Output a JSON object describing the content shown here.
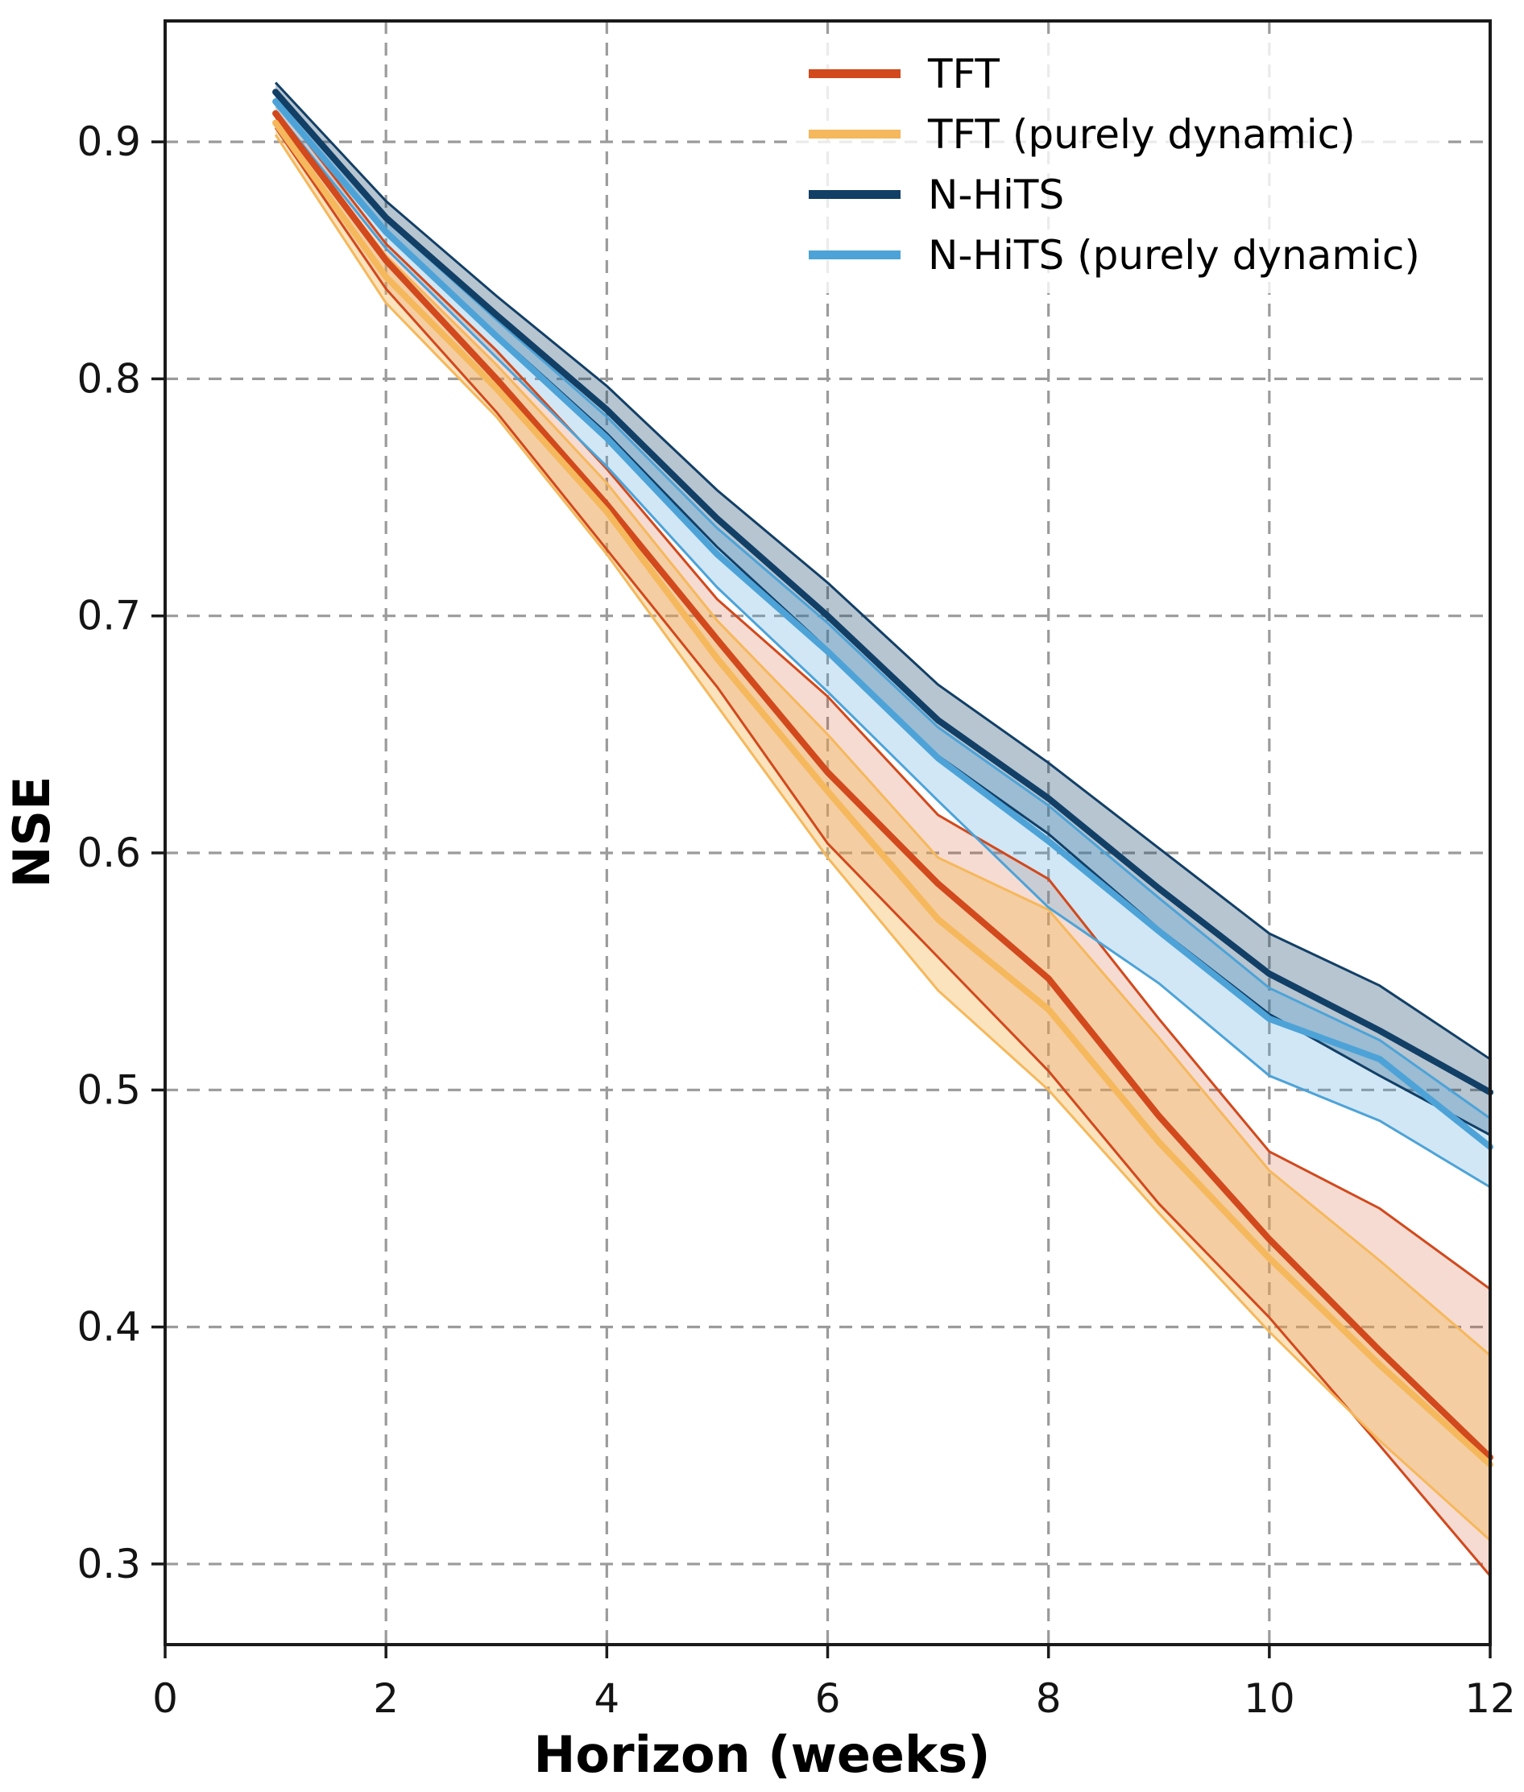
{
  "chart_data": {
    "type": "line",
    "title": "",
    "xlabel": "Horizon (weeks)",
    "ylabel": "NSE",
    "xlim": [
      0,
      12
    ],
    "ylim": [
      0.266,
      0.951
    ],
    "xticks": [
      0,
      2,
      4,
      6,
      8,
      10,
      12
    ],
    "xtick_labels": [
      "0",
      "2",
      "4",
      "6",
      "8",
      "10",
      "12"
    ],
    "yticks": [
      0.9,
      0.8,
      0.7,
      0.6,
      0.5,
      0.4,
      0.3
    ],
    "ytick_labels": [
      "0.9",
      "0.8",
      "0.7",
      "0.6",
      "0.5",
      "0.4",
      "0.3"
    ],
    "grid": {
      "show": true,
      "color": "#9b9b9b",
      "dash": "16 11",
      "width": 3.2
    },
    "legend_position": "upper right",
    "x": [
      1,
      2,
      3,
      4,
      5,
      6,
      7,
      8,
      9,
      10,
      11,
      12
    ],
    "series": [
      {
        "name": "TFT",
        "color": "#d1491d",
        "band_opacity": 0.2,
        "values": [
          0.912,
          0.85,
          0.8,
          0.747,
          0.69,
          0.634,
          0.587,
          0.547,
          0.489,
          0.437,
          0.39,
          0.345
        ],
        "band_hi": [
          0.917,
          0.857,
          0.812,
          0.762,
          0.707,
          0.666,
          0.616,
          0.589,
          0.53,
          0.474,
          0.45,
          0.416
        ],
        "band_lo": [
          0.906,
          0.838,
          0.786,
          0.728,
          0.67,
          0.604,
          0.556,
          0.508,
          0.452,
          0.404,
          0.35,
          0.295
        ]
      },
      {
        "name": "TFT (purely dynamic)",
        "color": "#f5b85c",
        "band_opacity": 0.4,
        "values": [
          0.908,
          0.843,
          0.796,
          0.744,
          0.682,
          0.626,
          0.572,
          0.534,
          0.478,
          0.429,
          0.384,
          0.342
        ],
        "band_hi": [
          0.912,
          0.852,
          0.806,
          0.756,
          0.698,
          0.65,
          0.598,
          0.576,
          0.522,
          0.466,
          0.428,
          0.388
        ],
        "band_lo": [
          0.903,
          0.832,
          0.784,
          0.726,
          0.662,
          0.598,
          0.542,
          0.5,
          0.448,
          0.398,
          0.352,
          0.31
        ]
      },
      {
        "name": "N-HiTS",
        "color": "#123f66",
        "band_opacity": 0.3,
        "values": [
          0.921,
          0.868,
          0.827,
          0.787,
          0.741,
          0.7,
          0.656,
          0.623,
          0.585,
          0.549,
          0.525,
          0.499
        ],
        "band_hi": [
          0.925,
          0.875,
          0.835,
          0.797,
          0.753,
          0.714,
          0.671,
          0.638,
          0.602,
          0.566,
          0.544,
          0.513
        ],
        "band_lo": [
          0.917,
          0.861,
          0.819,
          0.777,
          0.729,
          0.686,
          0.641,
          0.608,
          0.568,
          0.532,
          0.506,
          0.481
        ]
      },
      {
        "name": "N-HiTS (purely dynamic)",
        "color": "#4da3d7",
        "band_opacity": 0.26,
        "values": [
          0.917,
          0.862,
          0.818,
          0.775,
          0.726,
          0.685,
          0.64,
          0.605,
          0.567,
          0.53,
          0.513,
          0.476
        ],
        "band_hi": [
          0.92,
          0.867,
          0.825,
          0.784,
          0.737,
          0.697,
          0.653,
          0.62,
          0.581,
          0.543,
          0.521,
          0.488
        ],
        "band_lo": [
          0.913,
          0.855,
          0.809,
          0.763,
          0.712,
          0.668,
          0.622,
          0.577,
          0.545,
          0.506,
          0.487,
          0.459
        ]
      }
    ]
  }
}
